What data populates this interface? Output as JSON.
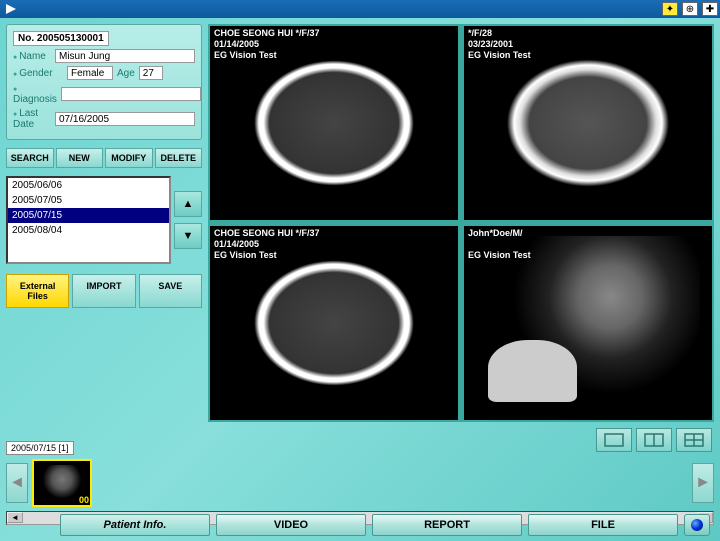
{
  "patient": {
    "no_label": "No.",
    "no_value": "200505130001",
    "name_label": "Name",
    "name_value": "Misun Jung",
    "gender_label": "Gender",
    "gender_value": "Female",
    "age_label": "Age",
    "age_value": "27",
    "diagnosis_label": "Diagnosis",
    "diagnosis_value": "",
    "lastdate_label": "Last Date",
    "lastdate_value": "07/16/2005"
  },
  "action_buttons": {
    "search": "SEARCH",
    "new": "NEW",
    "modify": "MODIFY",
    "delete": "DELETE"
  },
  "date_list": [
    "2005/06/06",
    "2005/07/05",
    "2005/07/15",
    "2005/08/04"
  ],
  "date_list_selected_index": 2,
  "file_buttons": {
    "external": "External Files",
    "import": "IMPORT",
    "save": "SAVE"
  },
  "scans": [
    {
      "patient": "CHOE SEONG HUI */F/37",
      "date": "01/14/2005",
      "test": "EG Vision Test"
    },
    {
      "patient": "*/F/28",
      "date": "03/23/2001",
      "test": "EG Vision Test"
    },
    {
      "patient": "CHOE SEONG HUI */F/37",
      "date": "01/14/2005",
      "test": "EG Vision Test"
    },
    {
      "patient": "John*Doe/M/",
      "date": "",
      "test": "EG Vision Test"
    }
  ],
  "thumb": {
    "label": "2005/07/15  [1]",
    "num": "00"
  },
  "tabs": {
    "patient": "Patient Info.",
    "video": "VIDEO",
    "report": "REPORT",
    "file": "FILE"
  },
  "colors": {
    "accent": "#5ec9c4",
    "highlight": "#ffeb00",
    "select": "#000080"
  }
}
